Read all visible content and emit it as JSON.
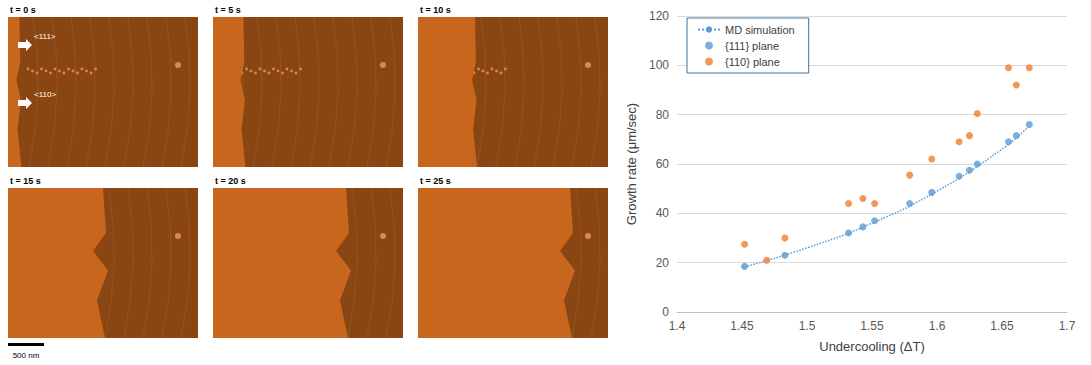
{
  "micrographs": {
    "frames": [
      {
        "label": "t = 0 s"
      },
      {
        "label": "t = 5 s"
      },
      {
        "label": "t = 10 s"
      },
      {
        "label": "t = 15 s"
      },
      {
        "label": "t = 20 s"
      },
      {
        "label": "t = 25 s"
      }
    ],
    "directions": [
      "<111>",
      "<110>"
    ],
    "scale_bar": "500 nm"
  },
  "chart_data": {
    "type": "scatter",
    "x_label": "Undercooling (ΔT)",
    "y_label": "Growth rate (μm/sec)",
    "xlim": [
      1.4,
      1.7
    ],
    "xticks": [
      1.4,
      1.45,
      1.5,
      1.55,
      1.6,
      1.65,
      1.7
    ],
    "ylim": [
      0,
      120
    ],
    "yticks": [
      0,
      20,
      40,
      60,
      80,
      100,
      120
    ],
    "grid": true,
    "legend": "upper left",
    "series": [
      {
        "name": "MD simulation",
        "type": "line",
        "line_style": "dotted",
        "marker": "none",
        "color": "#5b9bd5",
        "x": [
          1.45,
          1.5,
          1.55,
          1.6,
          1.65,
          1.67
        ],
        "values": [
          18,
          26,
          36,
          49,
          66,
          75
        ]
      },
      {
        "name": "{111} plane",
        "type": "scatter",
        "marker": "circle",
        "color": "#5b9bd5",
        "x": [
          1.452,
          1.483,
          1.532,
          1.543,
          1.552,
          1.579,
          1.596,
          1.617,
          1.625,
          1.631,
          1.655,
          1.661,
          1.671
        ],
        "values": [
          18.5,
          23,
          32,
          34.5,
          37,
          44,
          48.5,
          55,
          57.5,
          60,
          69,
          71.5,
          76
        ]
      },
      {
        "name": "{110} plane",
        "type": "scatter",
        "marker": "circle",
        "color": "#ed7d31",
        "x": [
          1.452,
          1.469,
          1.483,
          1.532,
          1.543,
          1.552,
          1.579,
          1.596,
          1.617,
          1.625,
          1.631,
          1.655,
          1.661,
          1.671
        ],
        "values": [
          27.5,
          21,
          30,
          44,
          46,
          44,
          55.5,
          62,
          69,
          71.5,
          80.5,
          99,
          92,
          99
        ]
      }
    ]
  }
}
